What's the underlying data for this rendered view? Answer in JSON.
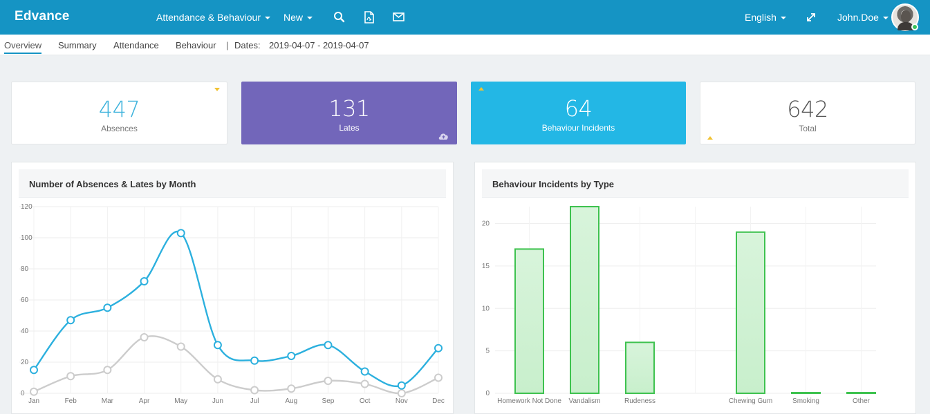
{
  "app": {
    "brand": "Edvance"
  },
  "topnav": {
    "menu_attendance": "Attendance & Behaviour",
    "menu_new": "New",
    "language": "English",
    "user": "John.Doe",
    "icons": [
      "search-icon",
      "pdf-file-icon",
      "mail-icon",
      "expand-icon"
    ]
  },
  "subnav": {
    "tabs": [
      "Overview",
      "Summary",
      "Attendance",
      "Behaviour"
    ],
    "active_tab": "Overview",
    "separator": "|",
    "dates_label": "Dates:",
    "dates_value": "2019-04-07 - 2019-04-07"
  },
  "stats": [
    {
      "value": "447",
      "label": "Absences"
    },
    {
      "value": "131",
      "label": "Lates"
    },
    {
      "value": "64",
      "label": "Behaviour Incidents"
    },
    {
      "value": "642",
      "label": "Total"
    }
  ],
  "colors": {
    "topbar": "#1594c4",
    "lates_card": "#7266ba",
    "behaviour_card": "#23b7e5",
    "absences_line": "#2cb0de",
    "lates_line": "#cccccc",
    "bar_fill": "#c8efcc",
    "bar_stroke": "#3ec24f"
  },
  "chart_data": [
    {
      "type": "line",
      "title": "Number of Absences & Lates by Month",
      "categories": [
        "Jan",
        "Feb",
        "Mar",
        "Apr",
        "May",
        "Jun",
        "Jul",
        "Aug",
        "Sep",
        "Oct",
        "Nov",
        "Dec"
      ],
      "series": [
        {
          "values": [
            15,
            47,
            55,
            72,
            103,
            31,
            21,
            24,
            31,
            14,
            5,
            29
          ]
        },
        {
          "values": [
            1,
            11,
            15,
            36,
            30,
            9,
            2,
            3,
            8,
            6,
            0,
            10
          ]
        }
      ],
      "yticks": [
        "0",
        "20",
        "40",
        "60",
        "80",
        "100",
        "120"
      ],
      "ylim": [
        0,
        120
      ],
      "grid": true
    },
    {
      "type": "bar",
      "title": "Behaviour Incidents by Type",
      "categories": [
        "Homework Not Done",
        "Vandalism",
        "Rudeness",
        "",
        "Chewing Gum",
        "Smoking",
        "Other"
      ],
      "values": [
        17,
        22,
        6,
        0,
        19,
        0,
        0
      ],
      "yticks": [
        "0",
        "5",
        "10",
        "15",
        "20"
      ],
      "ylim": [
        0,
        22
      ],
      "grid": true
    }
  ]
}
